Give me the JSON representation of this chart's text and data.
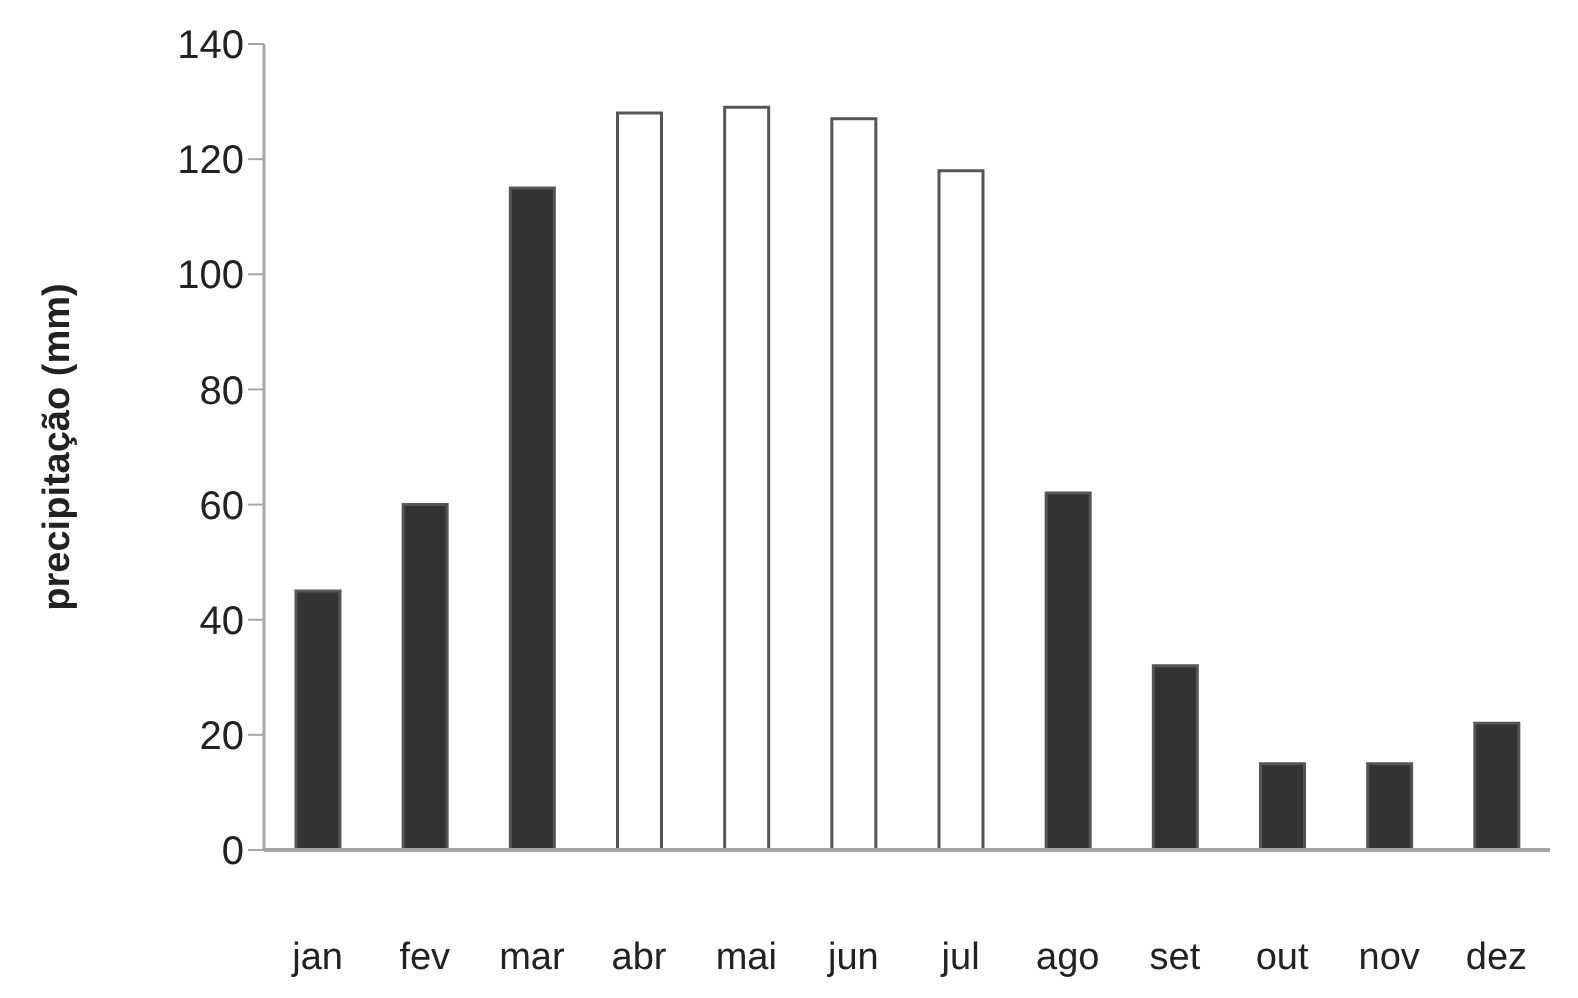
{
  "chart_data": {
    "type": "bar",
    "ylabel": "precipitação (mm)",
    "categories": [
      "jan",
      "fev",
      "mar",
      "abr",
      "mai",
      "jun",
      "jul",
      "ago",
      "set",
      "out",
      "nov",
      "dez"
    ],
    "values": [
      45,
      60,
      115,
      128,
      129,
      127,
      118,
      62,
      32,
      15,
      15,
      22
    ],
    "colors": [
      "#333333",
      "#333333",
      "#333333",
      "#ffffff",
      "#ffffff",
      "#ffffff",
      "#ffffff",
      "#333333",
      "#333333",
      "#333333",
      "#333333",
      "#333333"
    ],
    "ylim": [
      0,
      140
    ],
    "yticks": [
      0,
      20,
      40,
      60,
      80,
      100,
      120,
      140
    ],
    "grid": false,
    "legend": false
  }
}
